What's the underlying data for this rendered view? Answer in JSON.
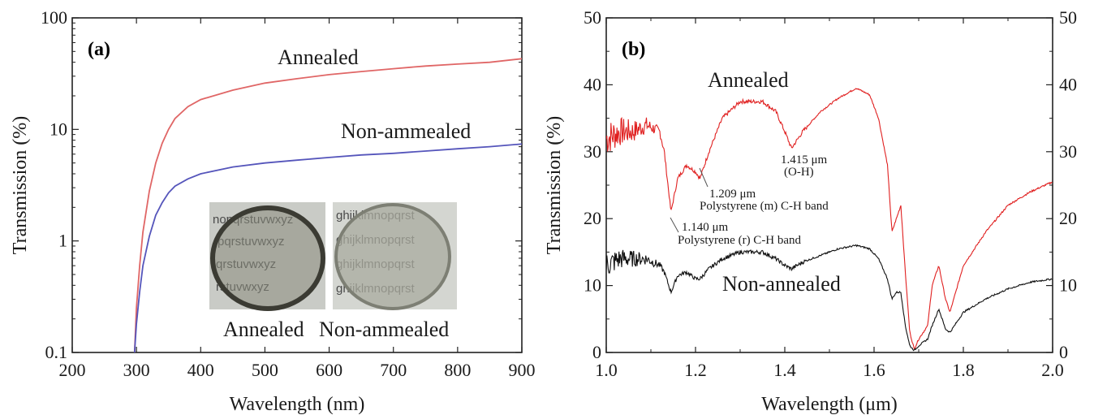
{
  "chart_data": [
    {
      "type": "line",
      "panel_label": "(a)",
      "xlabel": "Wavelength (nm)",
      "ylabel": "Transmission (%)",
      "xlim": [
        200,
        900
      ],
      "ylim": [
        0.1,
        100
      ],
      "yscale": "log",
      "x_ticks": [
        "200",
        "300",
        "400",
        "500",
        "600",
        "700",
        "800",
        "900"
      ],
      "y_ticks": [
        "0.1",
        "1",
        "10",
        "100"
      ],
      "series": [
        {
          "name": "Annealed",
          "color": "#e06666",
          "x": [
            297,
            300,
            305,
            310,
            320,
            330,
            340,
            350,
            360,
            380,
            400,
            450,
            500,
            550,
            600,
            650,
            700,
            750,
            800,
            850,
            900
          ],
          "y": [
            0.1,
            0.25,
            0.6,
            1.2,
            2.8,
            5.0,
            7.5,
            10.0,
            12.5,
            16.0,
            18.5,
            22.5,
            26.0,
            28.5,
            31.0,
            33.0,
            35.0,
            37.0,
            38.5,
            40.0,
            43.0
          ]
        },
        {
          "name": "Non-ammealed",
          "color": "#5555bb",
          "x": [
            297,
            300,
            305,
            310,
            320,
            330,
            340,
            350,
            360,
            380,
            400,
            450,
            500,
            550,
            600,
            650,
            700,
            750,
            800,
            850,
            900
          ],
          "y": [
            0.1,
            0.18,
            0.35,
            0.6,
            1.1,
            1.7,
            2.2,
            2.7,
            3.1,
            3.6,
            4.0,
            4.6,
            5.0,
            5.3,
            5.6,
            5.9,
            6.1,
            6.4,
            6.7,
            7.0,
            7.4
          ]
        }
      ],
      "inset_labels": [
        "Annealed",
        "Non-ammealed"
      ],
      "inset_text_rows": [
        "nopqrstuvwxyz",
        "pqrstuvwxyz",
        "qrstuvwxyz",
        "rstuvwxyz",
        "ghijklmnopqrst",
        "ghijklmnopqrst",
        "ghijklmnopqrst",
        "ghijklmnopqrst"
      ]
    },
    {
      "type": "line",
      "panel_label": "(b)",
      "xlabel": "Wavelength (μm)",
      "ylabel": "Transmission (%)",
      "xlim": [
        1.0,
        2.0
      ],
      "ylim": [
        0,
        50
      ],
      "x_ticks": [
        "1.0",
        "1.2",
        "1.4",
        "1.6",
        "1.8",
        "2.0"
      ],
      "y_ticks": [
        "0",
        "10",
        "20",
        "30",
        "40",
        "50"
      ],
      "y2_ticks": [
        "0",
        "10",
        "20",
        "30",
        "40",
        "50"
      ],
      "series": [
        {
          "name": "Annealed",
          "color": "#e02020",
          "x": [
            1.0,
            1.03,
            1.06,
            1.09,
            1.12,
            1.13,
            1.145,
            1.16,
            1.18,
            1.2,
            1.21,
            1.23,
            1.26,
            1.3,
            1.35,
            1.38,
            1.4,
            1.415,
            1.44,
            1.48,
            1.52,
            1.56,
            1.59,
            1.61,
            1.63,
            1.64,
            1.65,
            1.66,
            1.67,
            1.68,
            1.69,
            1.7,
            1.72,
            1.73,
            1.745,
            1.76,
            1.77,
            1.8,
            1.85,
            1.9,
            1.95,
            2.0
          ],
          "y": [
            32,
            33,
            33,
            34,
            33,
            30,
            21,
            26,
            28,
            27,
            26,
            30,
            35,
            37.5,
            37.5,
            36,
            33,
            30.5,
            33,
            36,
            38,
            39.5,
            38.5,
            35,
            28,
            18,
            20,
            22,
            12,
            3,
            0.5,
            2,
            4,
            10,
            13,
            8,
            6,
            13,
            18,
            22,
            24,
            25.5
          ]
        },
        {
          "name": "Non-annealed",
          "color": "#111111",
          "x": [
            1.0,
            1.03,
            1.06,
            1.09,
            1.12,
            1.13,
            1.145,
            1.16,
            1.18,
            1.2,
            1.21,
            1.23,
            1.26,
            1.3,
            1.35,
            1.38,
            1.4,
            1.415,
            1.44,
            1.48,
            1.52,
            1.56,
            1.59,
            1.61,
            1.63,
            1.64,
            1.65,
            1.66,
            1.67,
            1.68,
            1.69,
            1.7,
            1.72,
            1.73,
            1.745,
            1.76,
            1.77,
            1.8,
            1.85,
            1.9,
            1.95,
            2.0
          ],
          "y": [
            13,
            14,
            14,
            14,
            13,
            12,
            9,
            11.5,
            12,
            11,
            11,
            12.5,
            14,
            15,
            15,
            14,
            13,
            12.5,
            13.5,
            14.5,
            15.5,
            16,
            15.5,
            14,
            11,
            8,
            9,
            9,
            4,
            1,
            0.3,
            1,
            2,
            4,
            6.5,
            3.5,
            3,
            6,
            8,
            9.5,
            10.5,
            11
          ]
        }
      ],
      "annotations": [
        {
          "id": "oh",
          "lines": [
            "1.415 μm",
            "(O-H)"
          ]
        },
        {
          "id": "m",
          "lines": [
            "1.209 μm",
            "Polystyrene (m) C-H band"
          ]
        },
        {
          "id": "r",
          "lines": [
            "1.140 μm",
            "Polystyrene (r) C-H band"
          ]
        }
      ]
    }
  ]
}
